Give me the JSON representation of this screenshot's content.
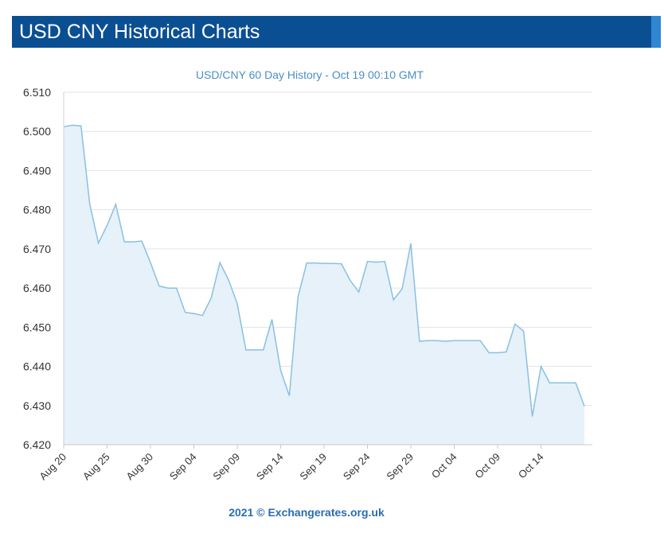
{
  "header": {
    "title": "USD CNY Historical Charts",
    "bar_color": "#0b4f93",
    "accent_color": "#2f86d1"
  },
  "footer": {
    "copyright": "2021 © Exchangerates.org.uk"
  },
  "chart_data": {
    "type": "area",
    "title": "USD/CNY 60 Day History - Oct 19 00:10 GMT",
    "xlabel": "",
    "ylabel": "",
    "ylim": [
      6.42,
      6.51
    ],
    "yticks": [
      "6.510",
      "6.500",
      "6.490",
      "6.480",
      "6.470",
      "6.460",
      "6.450",
      "6.440",
      "6.430",
      "6.420"
    ],
    "xticks": [
      "Aug 20",
      "Aug 25",
      "Aug 30",
      "Sep 04",
      "Sep 09",
      "Sep 14",
      "Sep 19",
      "Sep 24",
      "Sep 29",
      "Oct 04",
      "Oct 09",
      "Oct 14"
    ],
    "grid": true,
    "line_color": "#89c0e0",
    "fill_color": "#e6f1fa",
    "series": [
      {
        "x": [
          "2021-08-20",
          "2021-08-21",
          "2021-08-22",
          "2021-08-23",
          "2021-08-24",
          "2021-08-25",
          "2021-08-26",
          "2021-08-27",
          "2021-08-28",
          "2021-08-29",
          "2021-08-30",
          "2021-08-31",
          "2021-09-01",
          "2021-09-02",
          "2021-09-03",
          "2021-09-04",
          "2021-09-05",
          "2021-09-06",
          "2021-09-07",
          "2021-09-08",
          "2021-09-09",
          "2021-09-10",
          "2021-09-11",
          "2021-09-12",
          "2021-09-13",
          "2021-09-14",
          "2021-09-15",
          "2021-09-16",
          "2021-09-17",
          "2021-09-18",
          "2021-09-19",
          "2021-09-20",
          "2021-09-21",
          "2021-09-22",
          "2021-09-23",
          "2021-09-24",
          "2021-09-25",
          "2021-09-26",
          "2021-09-27",
          "2021-09-28",
          "2021-09-29",
          "2021-09-30",
          "2021-10-01",
          "2021-10-02",
          "2021-10-03",
          "2021-10-04",
          "2021-10-05",
          "2021-10-06",
          "2021-10-07",
          "2021-10-08",
          "2021-10-09",
          "2021-10-10",
          "2021-10-11",
          "2021-10-12",
          "2021-10-13",
          "2021-10-14",
          "2021-10-15",
          "2021-10-16",
          "2021-10-17",
          "2021-10-18",
          "2021-10-19"
        ],
        "values": [
          6.5012,
          6.5016,
          6.5014,
          6.4815,
          6.4715,
          6.476,
          6.4814,
          6.4718,
          6.4718,
          6.472,
          6.4665,
          6.4605,
          6.46,
          6.46,
          6.4538,
          6.4535,
          6.453,
          6.4575,
          6.4665,
          6.4621,
          6.456,
          6.4442,
          6.4442,
          6.4442,
          6.452,
          6.439,
          6.4325,
          6.4578,
          6.4664,
          6.4664,
          6.4663,
          6.4663,
          6.4662,
          6.462,
          6.459,
          6.4668,
          6.4666,
          6.4668,
          6.457,
          6.4598,
          6.4714,
          6.4464,
          6.4466,
          6.4466,
          6.4464,
          6.4466,
          6.4466,
          6.4466,
          6.4466,
          6.4435,
          6.4435,
          6.4437,
          6.4508,
          6.449,
          6.4272,
          6.44,
          6.4358,
          6.4358,
          6.4358,
          6.4358,
          6.4298
        ]
      }
    ]
  }
}
